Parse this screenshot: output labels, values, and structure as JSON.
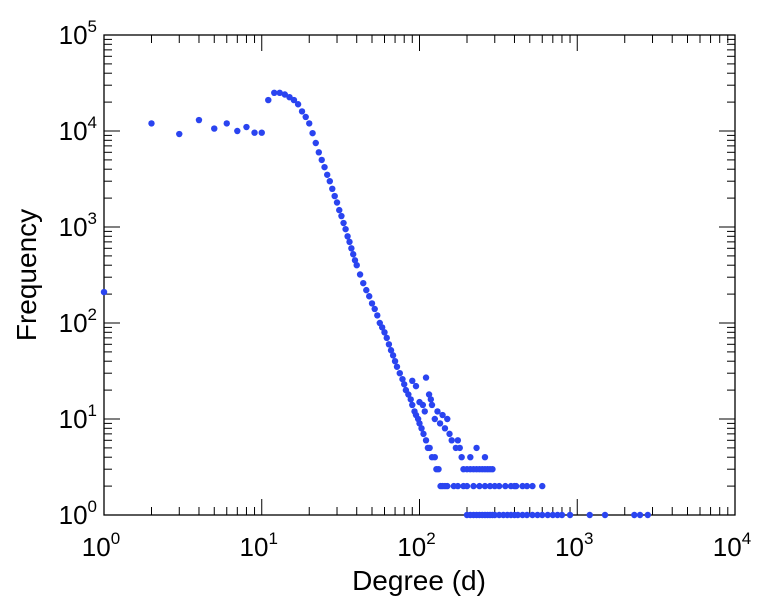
{
  "chart_data": {
    "type": "scatter",
    "scale": {
      "x": "log",
      "y": "log"
    },
    "xlabel": "Degree (d)",
    "ylabel": "Frequency",
    "xlim": [
      1,
      10000
    ],
    "ylim": [
      1,
      100000
    ],
    "x_ticks": [
      {
        "base": "10",
        "exp": "0",
        "value": 1
      },
      {
        "base": "10",
        "exp": "1",
        "value": 10
      },
      {
        "base": "10",
        "exp": "2",
        "value": 100
      },
      {
        "base": "10",
        "exp": "3",
        "value": 1000
      },
      {
        "base": "10",
        "exp": "4",
        "value": 10000
      }
    ],
    "y_ticks": [
      {
        "base": "10",
        "exp": "0",
        "value": 1
      },
      {
        "base": "10",
        "exp": "1",
        "value": 10
      },
      {
        "base": "10",
        "exp": "2",
        "value": 100
      },
      {
        "base": "10",
        "exp": "3",
        "value": 1000
      },
      {
        "base": "10",
        "exp": "4",
        "value": 10000
      },
      {
        "base": "10",
        "exp": "5",
        "value": 100000
      }
    ],
    "marker_color": "#2a44f0",
    "points": [
      [
        1,
        210
      ],
      [
        2,
        12000
      ],
      [
        3,
        9300
      ],
      [
        4,
        13000
      ],
      [
        5,
        10600
      ],
      [
        6,
        12000
      ],
      [
        7,
        10000
      ],
      [
        8,
        11000
      ],
      [
        9,
        9600
      ],
      [
        10,
        9600
      ],
      [
        11,
        21000
      ],
      [
        12,
        25000
      ],
      [
        13,
        25000
      ],
      [
        14,
        24000
      ],
      [
        15,
        22500
      ],
      [
        16,
        21000
      ],
      [
        17,
        19000
      ],
      [
        18,
        16000
      ],
      [
        19,
        14000
      ],
      [
        20,
        12000
      ],
      [
        21,
        9500
      ],
      [
        22,
        7500
      ],
      [
        23,
        6000
      ],
      [
        24,
        5000
      ],
      [
        25,
        4200
      ],
      [
        26,
        3500
      ],
      [
        27,
        3000
      ],
      [
        28,
        2500
      ],
      [
        29,
        2100
      ],
      [
        30,
        1800
      ],
      [
        31,
        1500
      ],
      [
        32,
        1300
      ],
      [
        33,
        1100
      ],
      [
        34,
        950
      ],
      [
        35,
        800
      ],
      [
        36,
        700
      ],
      [
        37,
        600
      ],
      [
        38,
        520
      ],
      [
        39,
        450
      ],
      [
        40,
        400
      ],
      [
        42,
        320
      ],
      [
        44,
        260
      ],
      [
        46,
        220
      ],
      [
        48,
        190
      ],
      [
        50,
        160
      ],
      [
        52,
        140
      ],
      [
        54,
        120
      ],
      [
        56,
        100
      ],
      [
        58,
        90
      ],
      [
        60,
        80
      ],
      [
        62,
        70
      ],
      [
        64,
        60
      ],
      [
        66,
        52
      ],
      [
        68,
        46
      ],
      [
        70,
        40
      ],
      [
        72,
        35
      ],
      [
        75,
        30
      ],
      [
        78,
        26
      ],
      [
        80,
        23
      ],
      [
        82,
        20
      ],
      [
        85,
        18
      ],
      [
        88,
        16
      ],
      [
        90,
        14
      ],
      [
        93,
        12
      ],
      [
        95,
        11
      ],
      [
        98,
        10
      ],
      [
        100,
        9
      ],
      [
        103,
        8
      ],
      [
        106,
        7
      ],
      [
        110,
        6
      ],
      [
        113,
        5
      ],
      [
        116,
        5
      ],
      [
        120,
        4
      ],
      [
        125,
        4
      ],
      [
        128,
        3
      ],
      [
        132,
        3
      ],
      [
        136,
        2
      ],
      [
        140,
        2
      ],
      [
        145,
        2
      ],
      [
        150,
        2
      ],
      [
        90,
        25
      ],
      [
        95,
        22
      ],
      [
        100,
        15
      ],
      [
        105,
        14
      ],
      [
        108,
        12
      ],
      [
        110,
        27
      ],
      [
        115,
        18
      ],
      [
        118,
        16
      ],
      [
        120,
        14
      ],
      [
        125,
        10
      ],
      [
        130,
        12
      ],
      [
        135,
        9
      ],
      [
        140,
        11
      ],
      [
        145,
        8
      ],
      [
        150,
        10
      ],
      [
        155,
        7
      ],
      [
        160,
        6
      ],
      [
        170,
        5
      ],
      [
        175,
        6
      ],
      [
        180,
        5
      ],
      [
        185,
        4
      ],
      [
        190,
        3
      ],
      [
        200,
        3
      ],
      [
        210,
        3
      ],
      [
        220,
        3
      ],
      [
        230,
        3
      ],
      [
        240,
        3
      ],
      [
        250,
        3
      ],
      [
        260,
        3
      ],
      [
        270,
        3
      ],
      [
        280,
        3
      ],
      [
        290,
        3
      ],
      [
        165,
        2
      ],
      [
        175,
        2
      ],
      [
        190,
        2
      ],
      [
        200,
        2
      ],
      [
        220,
        2
      ],
      [
        240,
        2
      ],
      [
        260,
        2
      ],
      [
        280,
        2
      ],
      [
        300,
        2
      ],
      [
        320,
        2
      ],
      [
        350,
        2
      ],
      [
        380,
        2
      ],
      [
        400,
        2
      ],
      [
        410,
        2
      ],
      [
        450,
        2
      ],
      [
        480,
        2
      ],
      [
        520,
        2
      ],
      [
        600,
        2
      ],
      [
        200,
        1
      ],
      [
        210,
        1
      ],
      [
        220,
        1
      ],
      [
        230,
        1
      ],
      [
        240,
        1
      ],
      [
        250,
        1
      ],
      [
        260,
        1
      ],
      [
        270,
        1
      ],
      [
        280,
        1
      ],
      [
        290,
        1
      ],
      [
        300,
        1
      ],
      [
        320,
        1
      ],
      [
        340,
        1
      ],
      [
        360,
        1
      ],
      [
        380,
        1
      ],
      [
        400,
        1
      ],
      [
        420,
        1
      ],
      [
        450,
        1
      ],
      [
        480,
        1
      ],
      [
        520,
        1
      ],
      [
        560,
        1
      ],
      [
        600,
        1
      ],
      [
        650,
        1
      ],
      [
        700,
        1
      ],
      [
        750,
        1
      ],
      [
        800,
        1
      ],
      [
        900,
        1
      ],
      [
        1200,
        1
      ],
      [
        1500,
        1
      ],
      [
        2300,
        1
      ],
      [
        2500,
        1
      ],
      [
        2800,
        1
      ],
      [
        260,
        4
      ],
      [
        210,
        4
      ],
      [
        230,
        5
      ]
    ]
  }
}
